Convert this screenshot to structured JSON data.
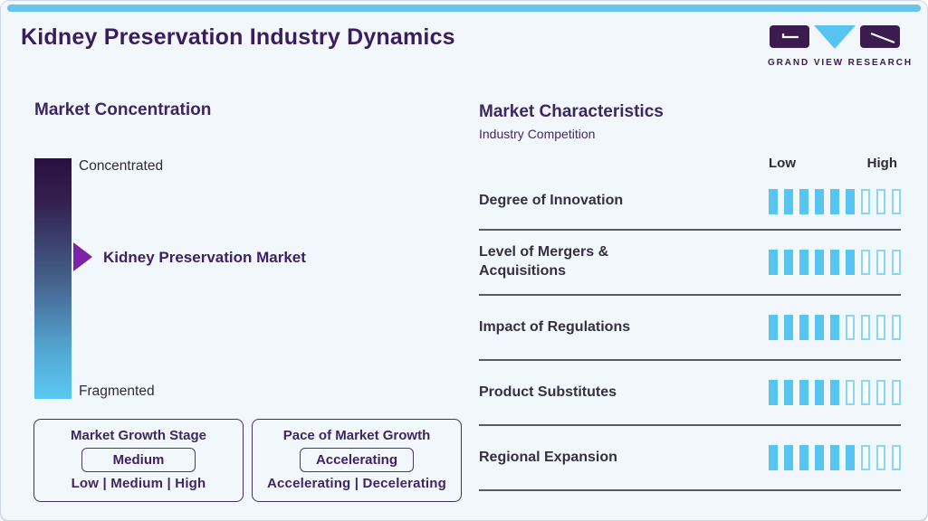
{
  "header": {
    "title": "Kidney Preservation Industry Dynamics",
    "logo_text": "GRAND VIEW RESEARCH"
  },
  "market_concentration": {
    "title": "Market Concentration",
    "top_label": "Concentrated",
    "bottom_label": "Fragmented",
    "pointer_label": "Kidney Preservation Market",
    "growth_stage": {
      "title": "Market Growth Stage",
      "selected": "Medium",
      "options_label": "Low | Medium | High"
    },
    "growth_pace": {
      "title": "Pace of Market Growth",
      "selected": "Accelerating",
      "options_label": "Accelerating | Decelerating"
    }
  },
  "market_characteristics": {
    "title": "Market Characteristics",
    "subtitle": "Industry Competition",
    "scale_low": "Low",
    "scale_high": "High",
    "rows": [
      {
        "label": "Degree of Innovation",
        "filled": 6,
        "total": 9
      },
      {
        "label": "Level of Mergers & Acquisitions",
        "filled": 6,
        "total": 9
      },
      {
        "label": "Impact of Regulations",
        "filled": 5,
        "total": 9
      },
      {
        "label": "Product Substitutes",
        "filled": 5,
        "total": 9
      },
      {
        "label": "Regional Expansion",
        "filled": 6,
        "total": 9
      }
    ]
  },
  "chart_data": {
    "type": "bar",
    "title": "Market Characteristics — Industry Competition (Kidney Preservation Industry Dynamics)",
    "categories": [
      "Degree of Innovation",
      "Level of Mergers & Acquisitions",
      "Impact of Regulations",
      "Product Substitutes",
      "Regional Expansion"
    ],
    "values": [
      6,
      6,
      5,
      5,
      6
    ],
    "value_range": [
      0,
      9
    ],
    "scale_labels": [
      "Low",
      "High"
    ],
    "companion_facts": {
      "market_concentration_scale": [
        "Concentrated",
        "Fragmented"
      ],
      "market_position_note": "Kidney Preservation Market marked ~42% of the way from Concentrated toward Fragmented",
      "market_growth_stage": "Medium",
      "pace_of_market_growth": "Accelerating"
    }
  },
  "colors": {
    "accent_blue": "#56c5f0",
    "top_bar_blue": "#67c4ec",
    "title_purple": "#3a1d5d",
    "heading_purple": "#3d2763",
    "arrow_purple": "#7c23a8",
    "row_label_dark": "#343041",
    "separator_gray": "#565b64",
    "card_background": "#f2f7fb",
    "gradient_top": "#2b1042",
    "gradient_bottom": "#5ac9f2"
  }
}
